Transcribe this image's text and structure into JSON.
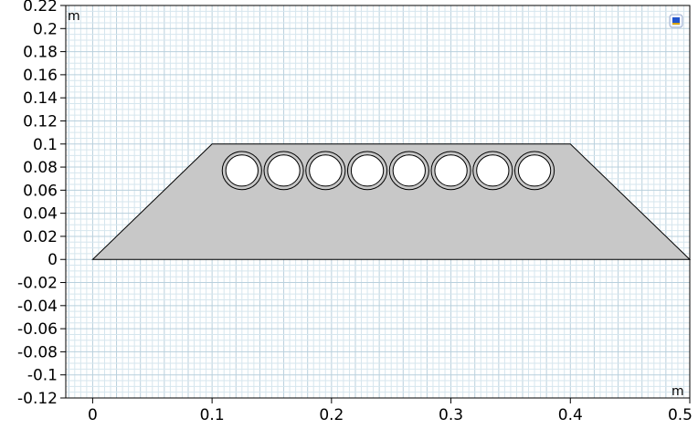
{
  "graphics_window": {
    "x_unit_label": "m",
    "y_unit_label": "m",
    "x_ticks": [
      {
        "value": 0,
        "label": "0"
      },
      {
        "value": 0.1,
        "label": "0.1"
      },
      {
        "value": 0.2,
        "label": "0.2"
      },
      {
        "value": 0.3,
        "label": "0.3"
      },
      {
        "value": 0.4,
        "label": "0.4"
      },
      {
        "value": 0.5,
        "label": "0.5"
      }
    ],
    "y_ticks": [
      {
        "value": 0.22,
        "label": "0.22"
      },
      {
        "value": 0.2,
        "label": "0.2"
      },
      {
        "value": 0.18,
        "label": "0.18"
      },
      {
        "value": 0.16,
        "label": "0.16"
      },
      {
        "value": 0.14,
        "label": "0.14"
      },
      {
        "value": 0.12,
        "label": "0.12"
      },
      {
        "value": 0.1,
        "label": "0.1"
      },
      {
        "value": 0.08,
        "label": "0.08"
      },
      {
        "value": 0.06,
        "label": "0.06"
      },
      {
        "value": 0.04,
        "label": "0.04"
      },
      {
        "value": 0.02,
        "label": "0.02"
      },
      {
        "value": 0,
        "label": "0"
      },
      {
        "value": -0.02,
        "label": "-0.02"
      },
      {
        "value": -0.04,
        "label": "-0.04"
      },
      {
        "value": -0.06,
        "label": "-0.06"
      },
      {
        "value": -0.08,
        "label": "-0.08"
      },
      {
        "value": -0.1,
        "label": "-0.1"
      },
      {
        "value": -0.12,
        "label": "-0.12"
      }
    ],
    "x_range": [
      -0.0225,
      0.5
    ],
    "y_range": [
      -0.12,
      0.22
    ],
    "minor_grid_step": 0.005,
    "colors": {
      "background": "#ffffff",
      "minor_grid": "#d6e6ee",
      "major_grid": "#b9d0dd",
      "axis_frame": "#000000",
      "domain_fill": "#c8c8c8",
      "domain_edge": "#000000",
      "hole_fill": "#ffffff",
      "tick_label": "#000000"
    },
    "icon": "coordinate-system-icon"
  },
  "geometry": {
    "trapezoid": [
      [
        0.0,
        0.0
      ],
      [
        0.5,
        0.0
      ],
      [
        0.4,
        0.1
      ],
      [
        0.1,
        0.1
      ]
    ],
    "pipes": {
      "centers_x": [
        0.125,
        0.16,
        0.195,
        0.23,
        0.265,
        0.3,
        0.335,
        0.37
      ],
      "center_y": 0.077,
      "outer_radius": 0.0165,
      "inner_radius": 0.0135
    }
  }
}
